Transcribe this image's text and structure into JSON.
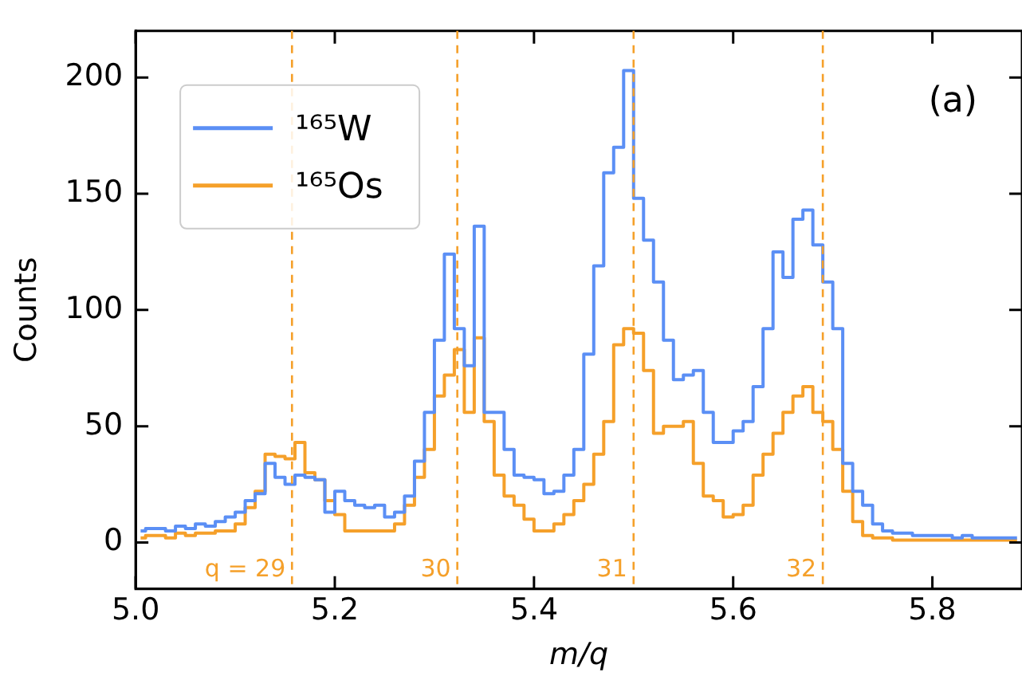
{
  "chart_data": {
    "type": "step",
    "xlabel": "m/q",
    "ylabel": "Counts",
    "x": [
      5.005,
      5.015,
      5.025,
      5.035,
      5.045,
      5.055,
      5.065,
      5.075,
      5.085,
      5.095,
      5.105,
      5.115,
      5.125,
      5.135,
      5.145,
      5.155,
      5.165,
      5.175,
      5.185,
      5.195,
      5.205,
      5.215,
      5.225,
      5.235,
      5.245,
      5.255,
      5.265,
      5.275,
      5.285,
      5.295,
      5.305,
      5.315,
      5.325,
      5.335,
      5.345,
      5.355,
      5.365,
      5.375,
      5.385,
      5.395,
      5.405,
      5.415,
      5.425,
      5.435,
      5.445,
      5.455,
      5.465,
      5.475,
      5.485,
      5.495,
      5.505,
      5.515,
      5.525,
      5.535,
      5.545,
      5.555,
      5.565,
      5.575,
      5.585,
      5.595,
      5.605,
      5.615,
      5.625,
      5.635,
      5.645,
      5.655,
      5.665,
      5.675,
      5.685,
      5.695,
      5.705,
      5.715,
      5.725,
      5.735,
      5.745,
      5.755,
      5.765,
      5.775,
      5.785,
      5.795,
      5.805,
      5.815,
      5.825,
      5.835,
      5.845,
      5.855,
      5.865,
      5.875,
      5.885
    ],
    "series": [
      {
        "name": "¹⁶⁵W",
        "color": "#5b8ff5",
        "values": [
          5,
          6,
          6,
          5,
          7,
          6,
          8,
          7,
          9,
          11,
          13,
          18,
          21,
          34,
          28,
          25,
          29,
          28,
          27,
          13,
          22,
          18,
          16,
          15,
          16,
          11,
          13,
          20,
          35,
          56,
          87,
          124,
          92,
          76,
          136,
          56,
          56,
          40,
          29,
          28,
          27,
          21,
          22,
          29,
          40,
          81,
          119,
          159,
          170,
          203,
          148,
          130,
          112,
          87,
          70,
          72,
          74,
          56,
          43,
          43,
          48,
          52,
          67,
          92,
          125,
          114,
          139,
          143,
          128,
          112,
          92,
          34,
          22,
          16,
          8,
          5,
          4,
          4,
          3,
          3,
          3,
          3,
          2,
          3,
          2,
          2,
          2,
          2,
          2
        ]
      },
      {
        "name": "¹⁶⁵Os",
        "color": "#f5a02a",
        "values": [
          2,
          3,
          3,
          2,
          4,
          3,
          4,
          4,
          5,
          5,
          8,
          15,
          22,
          38,
          37,
          36,
          43,
          30,
          27,
          18,
          12,
          5,
          5,
          5,
          5,
          5,
          8,
          16,
          28,
          40,
          63,
          72,
          83,
          56,
          88,
          52,
          29,
          20,
          16,
          10,
          5,
          5,
          8,
          12,
          18,
          25,
          38,
          52,
          85,
          92,
          90,
          74,
          47,
          50,
          50,
          52,
          34,
          20,
          18,
          11,
          12,
          16,
          29,
          38,
          47,
          56,
          63,
          67,
          56,
          52,
          40,
          22,
          9,
          3,
          2,
          2,
          1,
          1,
          1,
          1,
          1,
          1,
          1,
          1,
          1,
          1,
          1,
          1,
          1
        ]
      }
    ],
    "xlim": [
      5.0,
      5.89
    ],
    "ylim": [
      -20,
      220
    ],
    "xticks": [
      {
        "value": 5,
        "label": "5.0"
      },
      5.2,
      5.4,
      5.6,
      5.8
    ],
    "yticks": [
      0,
      50,
      100,
      150,
      200
    ],
    "ref_lines": [
      {
        "axis": "x",
        "value": 5.157,
        "color": "#f5a02a",
        "line_style": "dashed"
      },
      {
        "axis": "x",
        "value": 5.323,
        "color": "#f5a02a",
        "line_style": "dashed"
      },
      {
        "axis": "x",
        "value": 5.5,
        "color": "#f5a02a",
        "line_style": "dashed"
      },
      {
        "axis": "x",
        "value": 5.69,
        "color": "#f5a02a",
        "line_style": "dashed"
      }
    ],
    "annotations": [
      "(a)",
      {
        "text": "q = 29",
        "x": 5.157,
        "y": -12
      },
      {
        "text": "30",
        "x": 5.323,
        "y": -12
      },
      {
        "text": "31",
        "x": 5.5,
        "y": -12
      },
      {
        "text": "32",
        "x": 5.69,
        "y": -12
      }
    ],
    "legend": "top left",
    "grid": false
  }
}
